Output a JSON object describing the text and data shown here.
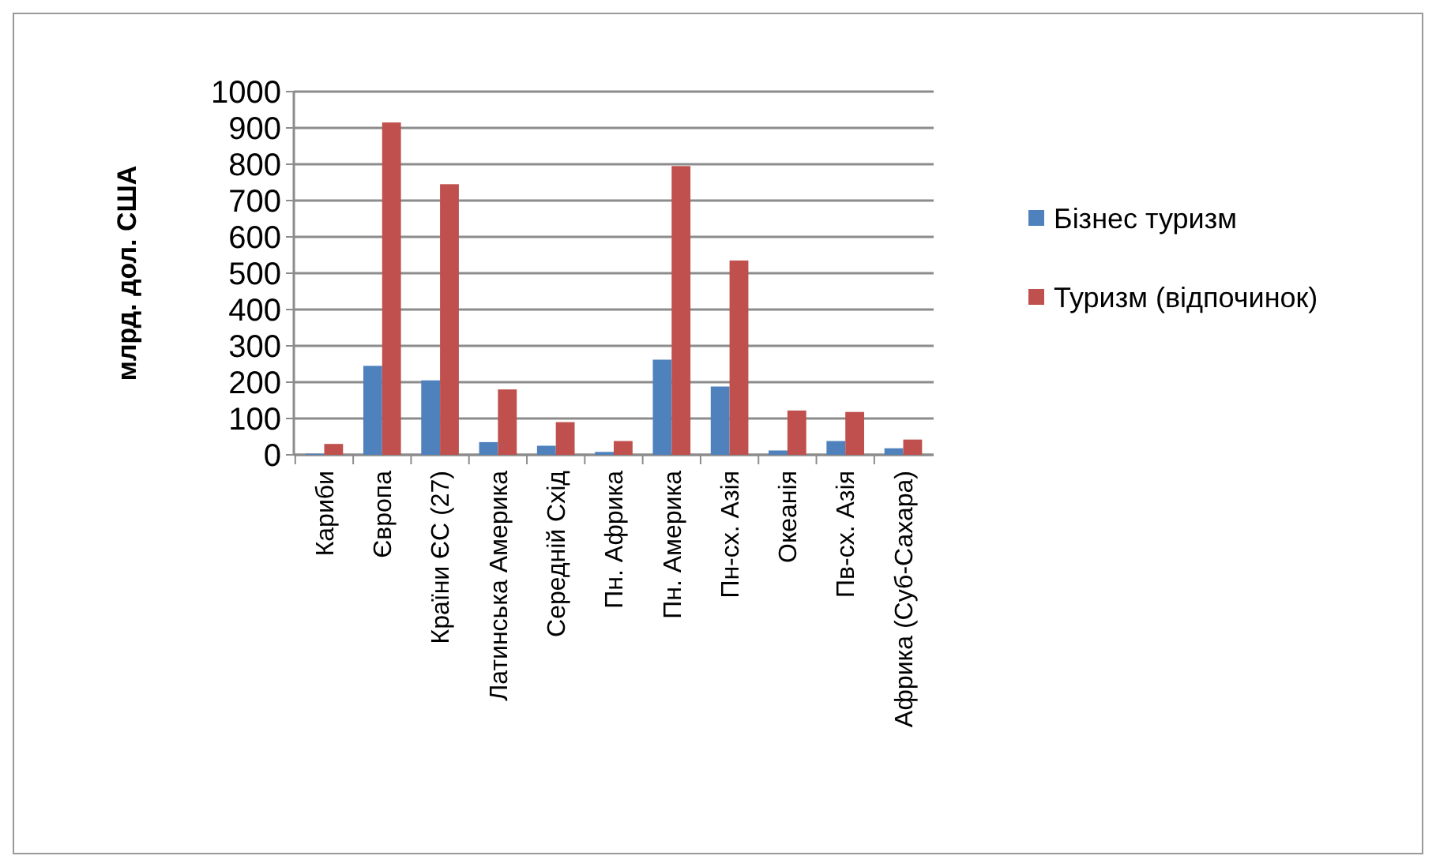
{
  "chart_data": {
    "type": "bar",
    "ylabel": "млрд. дол. США",
    "categories": [
      "Кариби",
      "Європа",
      "Країни ЄС (27)",
      "Латинська Америка",
      "Середній Схід",
      "Пн. Африка",
      "Пн. Америка",
      "Пн-сх. Азія",
      "Океанія",
      "Пв-сх. Азія",
      "Африка (Суб-Сахара)"
    ],
    "series": [
      {
        "name": "Бізнес туризм",
        "color": "#4f81bd",
        "values": [
          3,
          245,
          205,
          35,
          25,
          8,
          262,
          188,
          12,
          38,
          18
        ]
      },
      {
        "name": "Туризм (відпочинок)",
        "color": "#c0504d",
        "values": [
          30,
          915,
          745,
          180,
          90,
          38,
          795,
          535,
          122,
          118,
          42
        ]
      }
    ],
    "ylim": [
      0,
      1000
    ],
    "yticks": [
      0,
      100,
      200,
      300,
      400,
      500,
      600,
      700,
      800,
      900,
      1000
    ],
    "grid": "y",
    "legend": "right"
  }
}
